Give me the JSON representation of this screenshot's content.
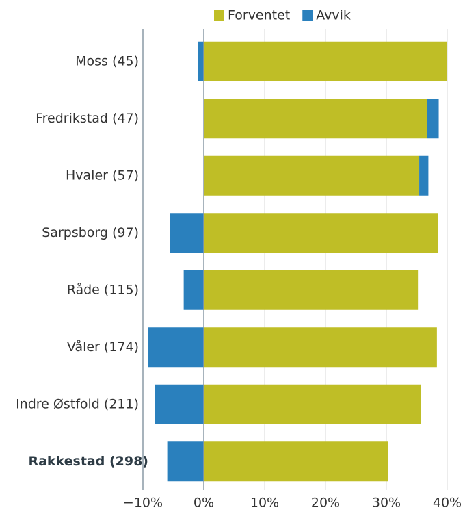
{
  "chart_data": {
    "type": "bar",
    "orientation": "horizontal",
    "stacked": true,
    "categories": [
      "Moss (45)",
      "Fredrikstad (47)",
      "Hvaler (57)",
      "Sarpsborg (97)",
      "Råde (115)",
      "Våler (174)",
      "Indre Østfold (211)",
      "Rakkestad (298)"
    ],
    "series": [
      {
        "name": "Forventet",
        "color": "#bfbe26",
        "values": [
          39.9,
          36.7,
          35.4,
          38.5,
          35.3,
          38.3,
          35.7,
          30.3
        ]
      },
      {
        "name": "Avvik",
        "color": "#2a80bd",
        "values": [
          -1.0,
          1.9,
          1.5,
          -5.6,
          -3.3,
          -9.1,
          -8.0,
          -6.0
        ]
      }
    ],
    "xlim": [
      -10,
      40
    ],
    "xticks": [
      {
        "value": -10,
        "label": "−10%"
      },
      {
        "value": 0,
        "label": "0%"
      },
      {
        "value": 10,
        "label": "10%"
      },
      {
        "value": 20,
        "label": "20%"
      },
      {
        "value": 30,
        "label": "30%"
      },
      {
        "value": 40,
        "label": "40%"
      }
    ],
    "grid": true,
    "legend": "top"
  }
}
